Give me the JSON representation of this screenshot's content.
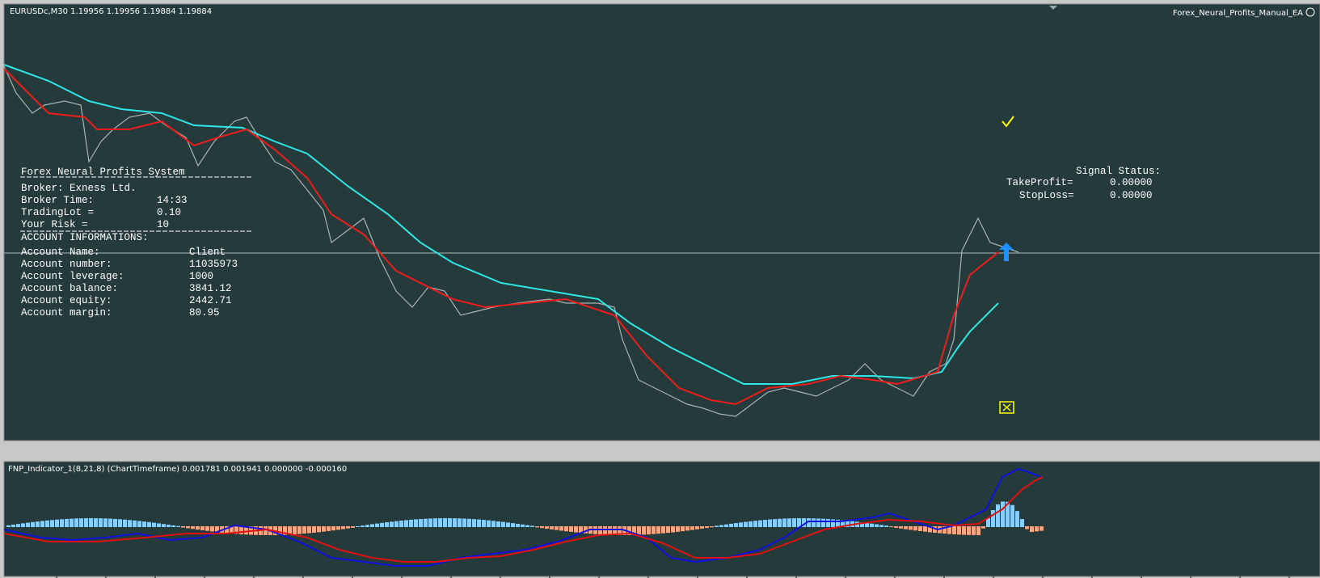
{
  "header": {
    "symbol": "EURUSDc,M30  1.19956 1.19956 1.19884 1.19884",
    "expert": "Forex_Neural_Profits_Manual_EA"
  },
  "panel": {
    "title": "Forex Neural Profits System",
    "broker": "Broker: Exness Ltd.",
    "settings": [
      [
        "Broker Time:",
        "14:33"
      ],
      [
        "TradingLot =",
        "0.10"
      ],
      [
        "Your Risk =",
        "10"
      ]
    ],
    "section": "ACCOUNT INFORMATIONS:",
    "account": [
      [
        "Account Name:",
        "Client"
      ],
      [
        "Account number:",
        "11035973"
      ],
      [
        "Account leverage:",
        "1000"
      ],
      [
        "Account balance:",
        "3841.12"
      ],
      [
        "Account equity:",
        "2442.71"
      ],
      [
        "Account margin:",
        "80.95"
      ]
    ]
  },
  "signal": {
    "title": "Signal Status:",
    "take_profit_label": "TakeProfit=",
    "take_profit": "0.00000",
    "stop_loss_label": "StopLoss=",
    "stop_loss": "0.00000"
  },
  "indicator": {
    "label": "FNP_Indicator_1(8,21,8) (ChartTimeframe) 0.001781 0.001941 0.000000 -0.000160"
  }
}
